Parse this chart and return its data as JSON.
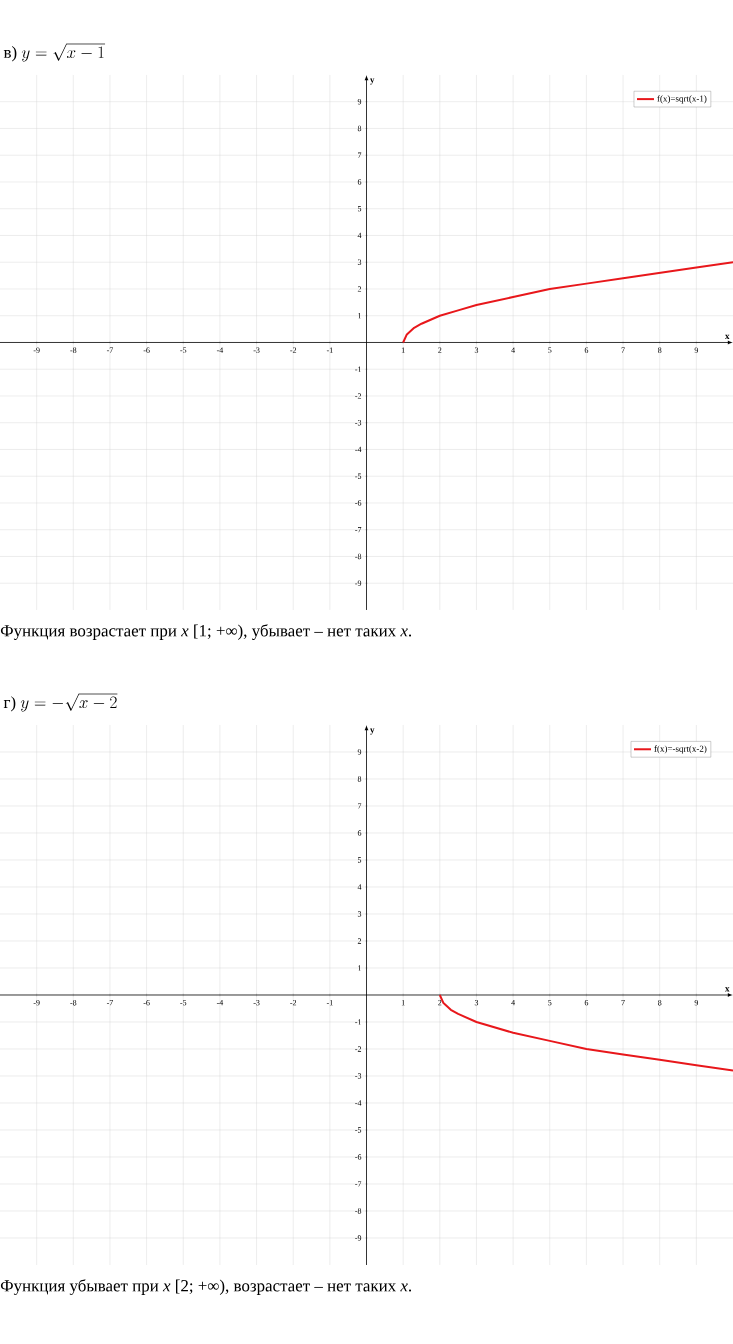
{
  "chart_data": [
    {
      "type": "line",
      "title": "\\mbox{в) }y=\\sqrt{x-1}",
      "xlabel": "x",
      "ylabel": "y",
      "x": [
        1,
        1.1,
        1.3,
        1.5,
        2,
        2.5,
        3,
        4,
        5,
        6,
        7,
        8,
        9,
        10
      ],
      "series": [
        {
          "name": "f(x)=sqrt(x-1)",
          "color": "#e8171b",
          "values": [
            0,
            0.3,
            0.55,
            0.7,
            1,
            1.2,
            1.4,
            1.7,
            2,
            2.2,
            2.4,
            2.6,
            2.8,
            3
          ]
        }
      ],
      "xlim": [
        -10,
        10
      ],
      "ylim": [
        -10,
        10
      ],
      "xticks": [
        -9,
        -8,
        -7,
        -6,
        -5,
        -4,
        -3,
        -2,
        -1,
        1,
        2,
        3,
        4,
        5,
        6,
        7,
        8,
        9
      ],
      "yticks": [
        -9,
        -8,
        -7,
        -6,
        -5,
        -4,
        -3,
        -2,
        -1,
        1,
        2,
        3,
        4,
        5,
        6,
        7,
        8,
        9
      ],
      "grid": true,
      "legend": "top right",
      "marker": "none",
      "line_style": "solid",
      "annotations": [
        "Функция возрастает при *x* [1;  +∞), убывает – нет таких *x*."
      ]
    },
    {
      "type": "line",
      "title": "\\mbox{г) }y=-\\sqrt{x-2}",
      "xlabel": "x",
      "ylabel": "y",
      "x": [
        2,
        2.1,
        2.3,
        2.5,
        3,
        4,
        5,
        6,
        7,
        8,
        9,
        10
      ],
      "series": [
        {
          "name": "f(x)=-sqrt(x-2)",
          "color": "#e8171b",
          "values": [
            0,
            -0.3,
            -0.55,
            -0.7,
            -1,
            -1.4,
            -1.7,
            -2,
            -2.2,
            -2.4,
            -2.6,
            -2.8
          ]
        }
      ],
      "xlim": [
        -10,
        10
      ],
      "ylim": [
        -10,
        10
      ],
      "xticks": [
        -9,
        -8,
        -7,
        -6,
        -5,
        -4,
        -3,
        -2,
        -1,
        1,
        2,
        3,
        4,
        5,
        6,
        7,
        8,
        9
      ],
      "yticks": [
        -9,
        -8,
        -7,
        -6,
        -5,
        -4,
        -3,
        -2,
        -1,
        1,
        2,
        3,
        4,
        5,
        6,
        7,
        8,
        9
      ],
      "grid": true,
      "legend": "top right",
      "marker": "none",
      "line_style": "solid",
      "annotations": [
        "Функция убывает при *x* [2; +∞), возрастает – нет таких *x*."
      ]
    }
  ]
}
